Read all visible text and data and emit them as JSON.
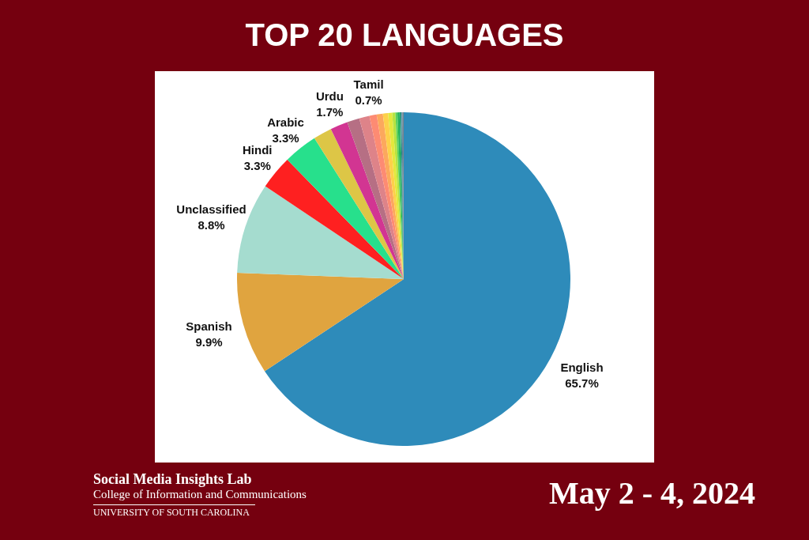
{
  "chart_data": {
    "type": "pie",
    "title": "TOP 20 LANGUAGES",
    "categories": [
      "English",
      "Spanish",
      "Unclassified",
      "Hindi",
      "Arabic",
      null,
      "Urdu",
      null,
      null,
      "Tamil",
      null,
      null,
      null,
      null,
      null,
      null,
      null,
      null,
      null,
      null
    ],
    "values": [
      65.7,
      9.9,
      8.8,
      3.3,
      3.3,
      1.8,
      1.7,
      1.2,
      1.0,
      0.7,
      0.6,
      0.5,
      0.4,
      0.3,
      0.2,
      0.2,
      0.1,
      0.1,
      0.1,
      0.1
    ],
    "value_labels": [
      "65.7%",
      "9.9%",
      "8.8%",
      "3.3%",
      "3.3%",
      null,
      "1.7%",
      null,
      null,
      "0.7%",
      null,
      null,
      null,
      null,
      null,
      null,
      null,
      null,
      null,
      null
    ],
    "colors": [
      "#2e8bba",
      "#e0a43f",
      "#a5dccf",
      "#fe2020",
      "#27e08c",
      "#ddc646",
      "#d23592",
      "#b66f84",
      "#de8389",
      "#fd8b73",
      "#fca85d",
      "#fdd04a",
      "#e3e83c",
      "#b6e341",
      "#5dd15a",
      "#22b35b",
      "#1e9c6b",
      "#2a8a8a",
      "#5a7f99",
      "#7a8590"
    ],
    "annotations": [
      "Social Media Insights Lab",
      "College of Information and Communications",
      "UNIVERSITY OF SOUTH CAROLINA",
      "May 2 - 4, 2024"
    ]
  }
}
